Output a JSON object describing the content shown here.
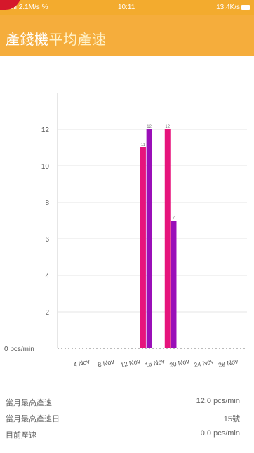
{
  "status_bar": {
    "carrier": "ull 2.1M/s %",
    "time": "10:11",
    "battery": "13.4K/s"
  },
  "header": {
    "title_part1": "產錢機",
    "title_part2": "平均產速"
  },
  "chart_data": {
    "type": "bar",
    "x_tick_labels": [
      "4 Nov",
      "8 Nov",
      "12 Nov",
      "16 Nov",
      "20 Nov",
      "24 Nov",
      "28 Nov"
    ],
    "y_ticks": [
      2,
      4,
      6,
      8,
      10,
      12
    ],
    "ylim": [
      0,
      14
    ],
    "y_unit_label": "0  pcs/min",
    "grid": true,
    "series": [
      {
        "color": "#e6147c",
        "points": [
          {
            "day": 14,
            "value": 11
          },
          {
            "day": 18,
            "value": 12
          }
        ]
      },
      {
        "color": "#9a0fb8",
        "points": [
          {
            "day": 15,
            "value": 12
          },
          {
            "day": 19,
            "value": 7
          }
        ]
      }
    ]
  },
  "info": [
    {
      "label": "當月最高產速",
      "value": "12.0 pcs/min"
    },
    {
      "label": "當月最高產速日",
      "value": "15號"
    },
    {
      "label": "目前產速",
      "value": "0.0 pcs/min"
    }
  ]
}
